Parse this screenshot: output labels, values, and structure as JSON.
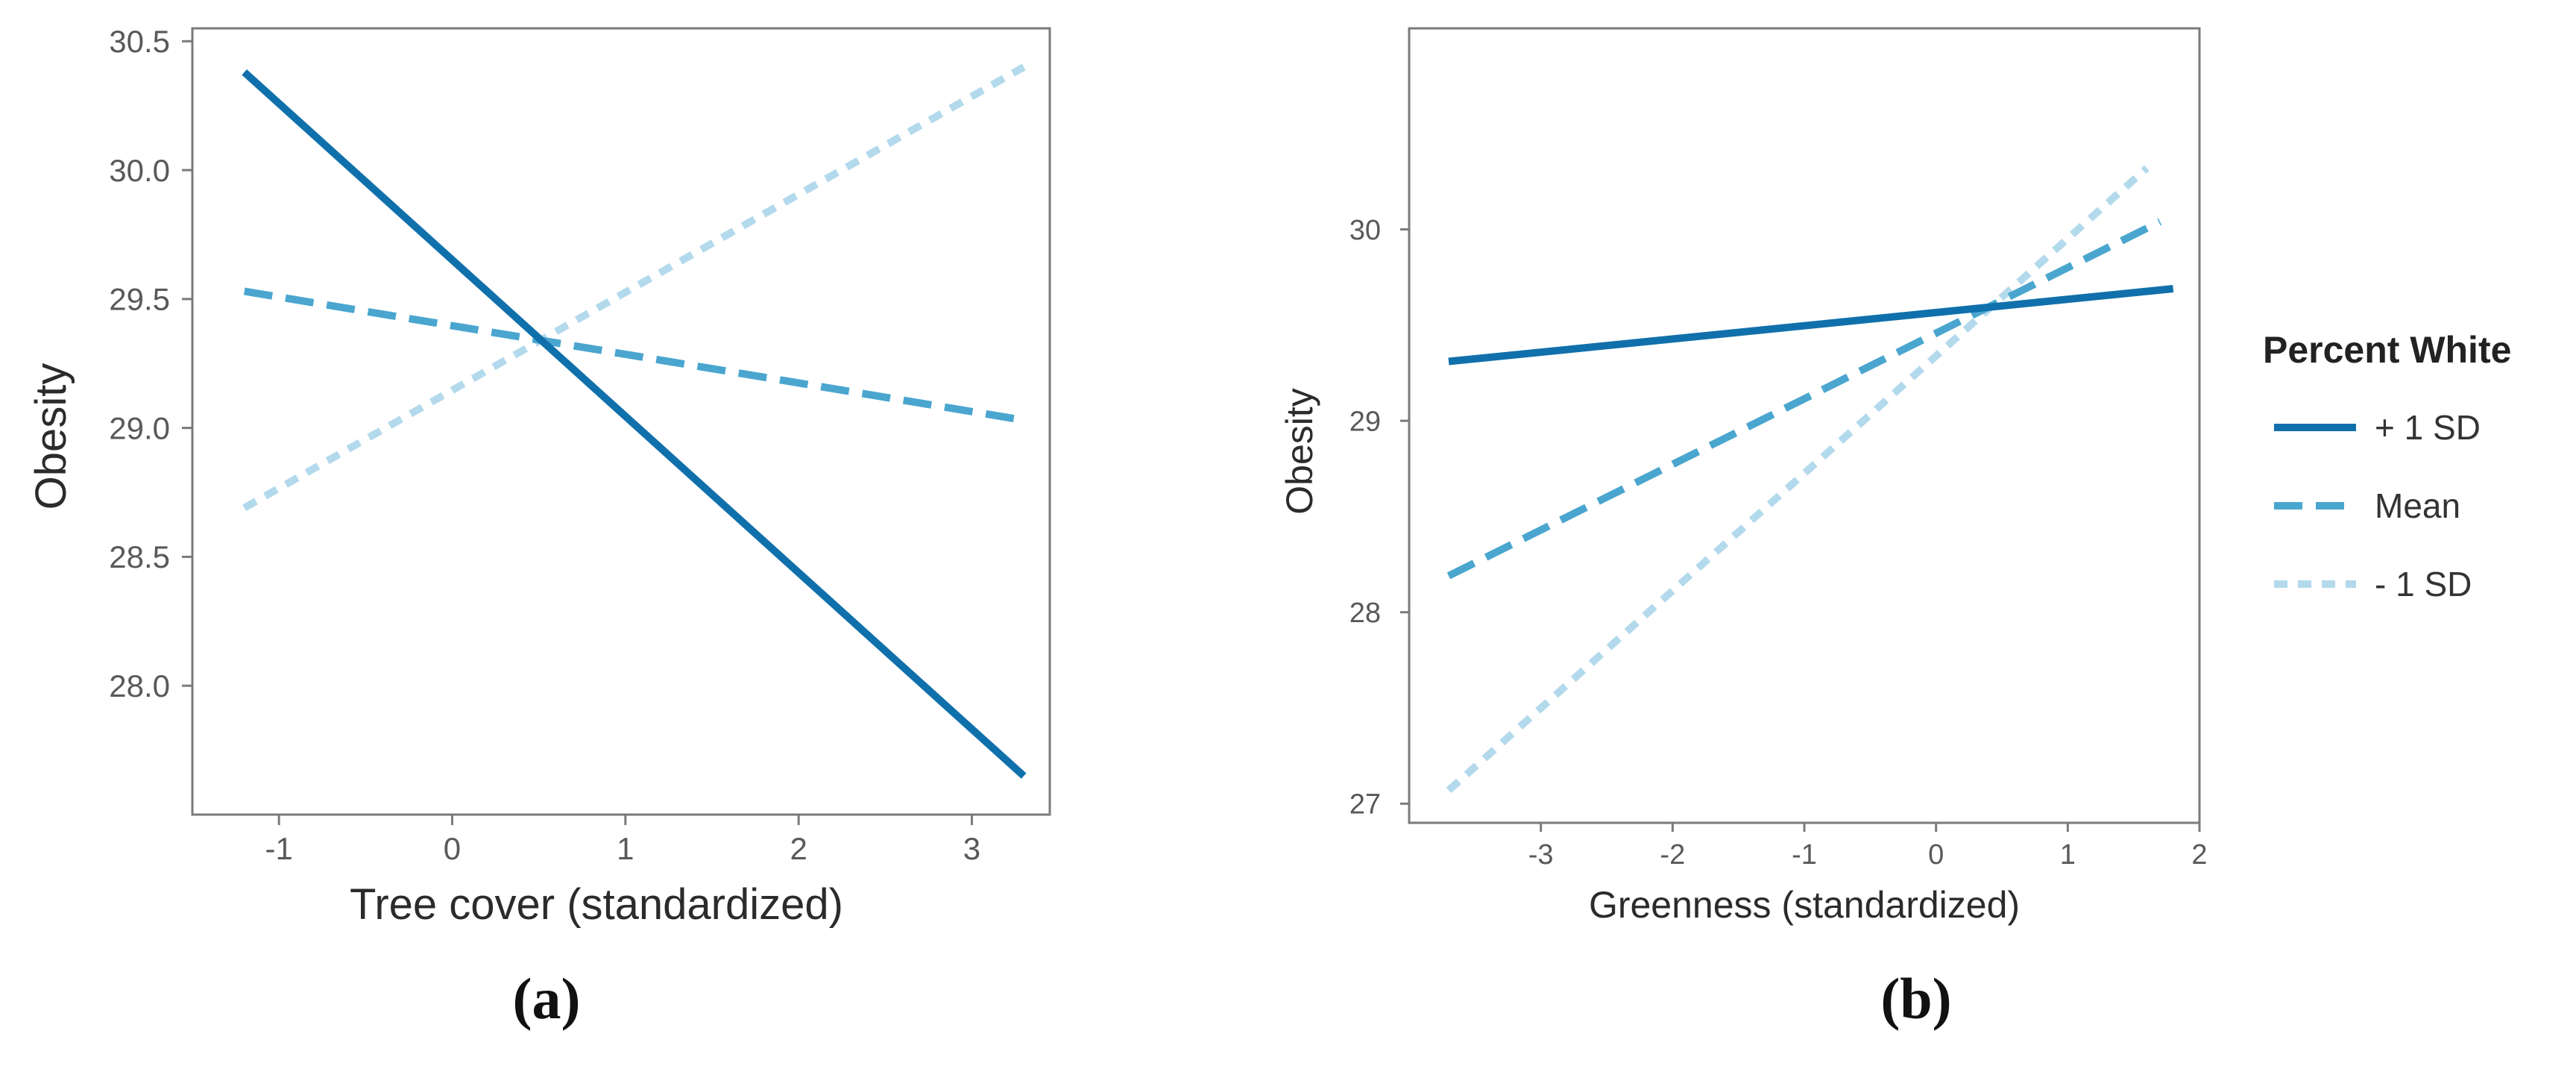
{
  "colors": {
    "plus_1_sd": "#1070ab",
    "mean": "#4aa6cf",
    "minus_1_sd": "#b3d9ec",
    "frame": "#7a7a7a"
  },
  "legend": {
    "title": "Percent White",
    "items": [
      "+ 1 SD",
      "Mean",
      "- 1 SD"
    ]
  },
  "panels": [
    {
      "label": "(a)"
    },
    {
      "label": "(b)"
    }
  ],
  "chart_data": [
    {
      "type": "line",
      "panel": "(a)",
      "title": "",
      "xlabel": "Tree cover (standardized)",
      "ylabel": "Obesity",
      "xlim": [
        -1.5,
        3.45
      ],
      "ylim": [
        27.5,
        30.55
      ],
      "x_ticks": [
        -1,
        0,
        1,
        2,
        3
      ],
      "x_tick_labels": [
        "-1",
        "0",
        "1",
        "2",
        "3"
      ],
      "y_ticks": [
        28.0,
        28.5,
        29.0,
        29.5,
        30.0,
        30.5
      ],
      "y_tick_labels": [
        "28.0",
        "28.5",
        "29.0",
        "29.5",
        "30.0",
        "30.5"
      ],
      "grid": false,
      "series": [
        {
          "name": "+ 1 SD",
          "style": "solid",
          "x": [
            -1.2,
            3.3
          ],
          "y": [
            30.38,
            27.65
          ]
        },
        {
          "name": "Mean",
          "style": "dashed",
          "x": [
            -1.2,
            3.3
          ],
          "y": [
            29.53,
            29.03
          ]
        },
        {
          "name": "- 1 SD",
          "style": "dotted",
          "x": [
            -1.2,
            3.3
          ],
          "y": [
            28.69,
            30.4
          ]
        }
      ]
    },
    {
      "type": "line",
      "panel": "(b)",
      "title": "",
      "xlabel": "Greenness (standardized)",
      "ylabel": "Obesity",
      "xlim": [
        -4.0,
        2.0
      ],
      "ylim": [
        26.9,
        31.05
      ],
      "x_ticks": [
        -3,
        -2,
        -1,
        0,
        1,
        2
      ],
      "x_tick_labels": [
        "-3",
        "-2",
        "-1",
        "0",
        "1",
        "2"
      ],
      "y_ticks": [
        27,
        28,
        29,
        30
      ],
      "y_tick_labels": [
        "27",
        "28",
        "29",
        "30"
      ],
      "grid": false,
      "series": [
        {
          "name": "+ 1 SD",
          "style": "solid",
          "x": [
            -3.7,
            1.8
          ],
          "y": [
            29.31,
            29.69
          ]
        },
        {
          "name": "Mean",
          "style": "dashed",
          "x": [
            -3.7,
            1.7
          ],
          "y": [
            28.19,
            30.04
          ]
        },
        {
          "name": "- 1 SD",
          "style": "dotted",
          "x": [
            -3.7,
            1.6
          ],
          "y": [
            27.07,
            30.32
          ]
        }
      ]
    }
  ]
}
